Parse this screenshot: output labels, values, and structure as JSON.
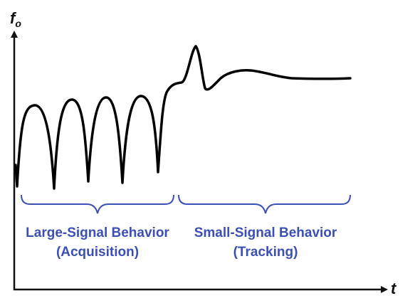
{
  "axes": {
    "y_label": "f",
    "y_label_subscript": "o",
    "x_label": "t"
  },
  "regions": [
    {
      "line1": "Large-Signal Behavior",
      "line2": "(Acquisition)"
    },
    {
      "line1": "Small-Signal Behavior",
      "line2": "(Tracking)"
    }
  ],
  "colors": {
    "axis": "#111111",
    "curve": "#000000",
    "brace": "#3b4fb5",
    "region_text": "#3b4fb5"
  }
}
